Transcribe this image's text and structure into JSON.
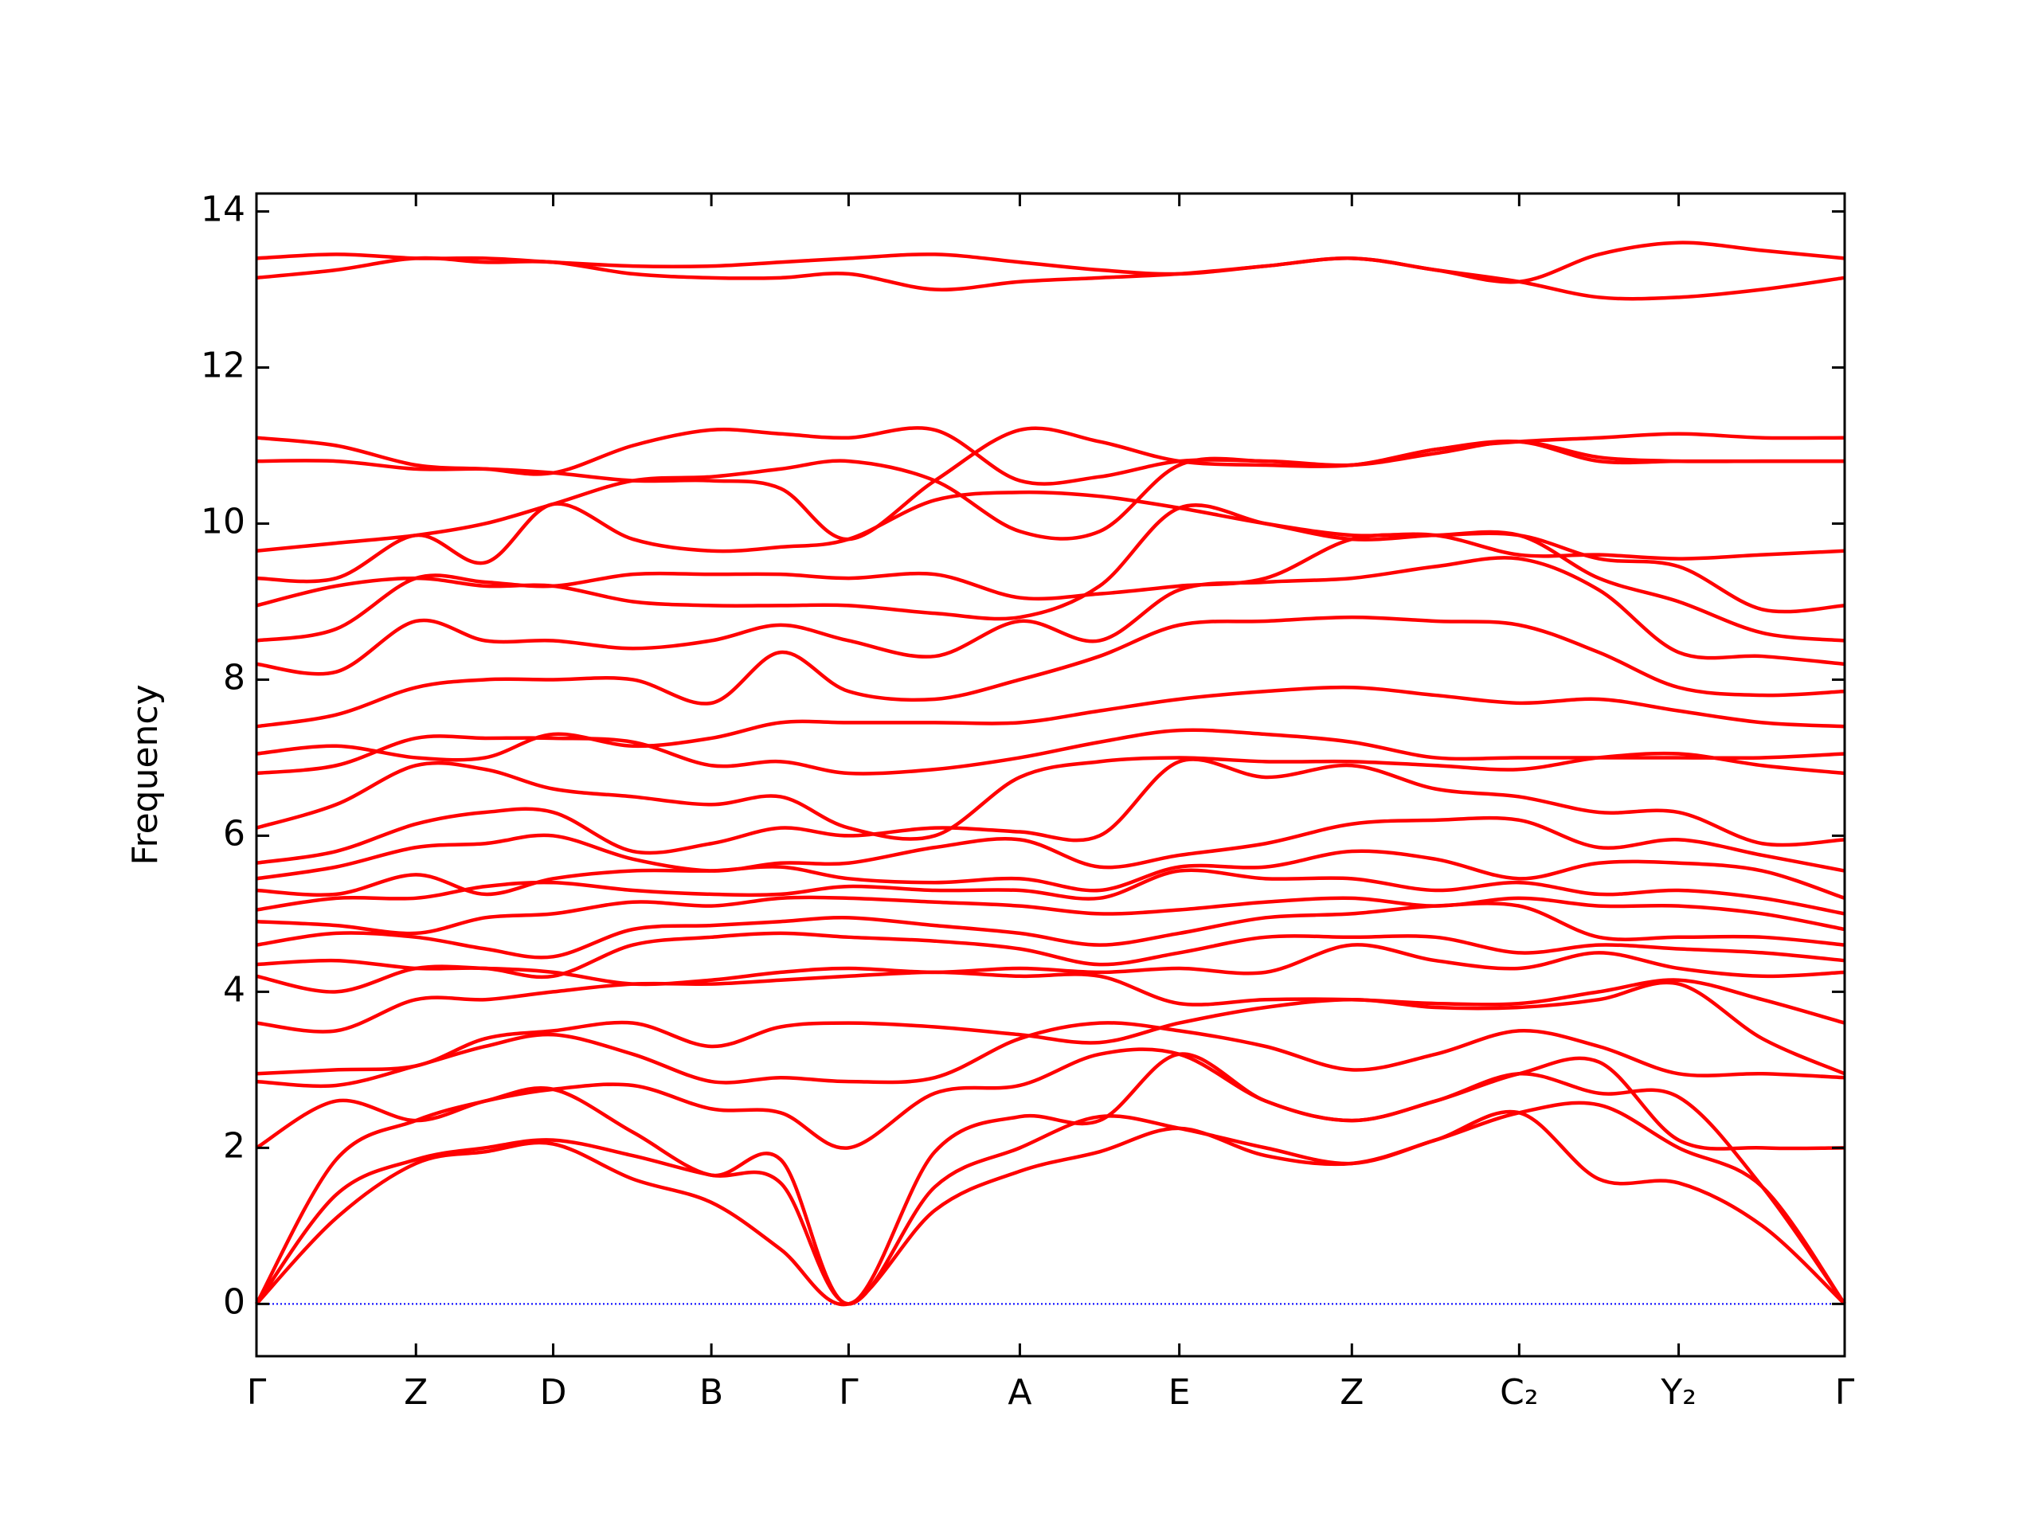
{
  "chart_data": {
    "type": "line",
    "y_label": "Frequency",
    "line_color": "#ff0000",
    "reference_line": {
      "y": 0,
      "color": "#0000ff",
      "style": "dotted"
    },
    "xlim": [
      0,
      12.15
    ],
    "ylim": [
      -0.67,
      14.23
    ],
    "xticks": [
      {
        "value": 0,
        "label": "Γ"
      },
      {
        "value": 1.22,
        "label": "Z"
      },
      {
        "value": 2.27,
        "label": "D"
      },
      {
        "value": 3.48,
        "label": "B"
      },
      {
        "value": 4.53,
        "label": "Γ"
      },
      {
        "value": 5.84,
        "label": "A"
      },
      {
        "value": 7.06,
        "label": "E"
      },
      {
        "value": 8.38,
        "label": "Z"
      },
      {
        "value": 9.66,
        "label": "C₂"
      },
      {
        "value": 10.88,
        "label": "Y₂"
      },
      {
        "value": 12.15,
        "label": "Γ"
      }
    ],
    "yticks": [
      0,
      2,
      4,
      6,
      8,
      10,
      12,
      14
    ],
    "x": [
      0,
      0.61,
      1.22,
      1.75,
      2.27,
      2.88,
      3.48,
      4.01,
      4.53,
      5.19,
      5.84,
      6.45,
      7.06,
      7.72,
      8.38,
      9.02,
      9.66,
      10.27,
      10.88,
      11.52,
      12.15
    ],
    "series": [
      {
        "values": [
          0,
          1.1,
          1.8,
          1.95,
          2.05,
          1.6,
          1.3,
          0.7,
          0,
          1.2,
          1.7,
          1.95,
          2.25,
          1.9,
          1.8,
          2.1,
          2.45,
          1.6,
          1.55,
          1.0,
          0
        ]
      },
      {
        "values": [
          0,
          1.4,
          1.85,
          2.0,
          2.1,
          1.9,
          1.65,
          1.55,
          0,
          1.5,
          2.0,
          2.4,
          2.25,
          2.0,
          1.8,
          2.1,
          2.45,
          2.55,
          2.0,
          1.5,
          0
        ]
      },
      {
        "values": [
          0,
          1.85,
          2.35,
          2.6,
          2.75,
          2.2,
          1.65,
          1.85,
          0,
          1.95,
          2.4,
          2.35,
          3.2,
          2.6,
          2.35,
          2.6,
          2.95,
          2.7,
          2.65,
          1.5,
          0
        ]
      },
      {
        "values": [
          2.0,
          2.6,
          2.35,
          2.6,
          2.75,
          2.8,
          2.5,
          2.45,
          2.0,
          2.7,
          2.8,
          3.2,
          3.2,
          2.6,
          2.35,
          2.6,
          2.95,
          3.1,
          2.1,
          2.0,
          2.0
        ]
      },
      {
        "values": [
          2.85,
          2.8,
          3.05,
          3.3,
          3.45,
          3.2,
          2.85,
          2.9,
          2.85,
          2.9,
          3.4,
          3.6,
          3.5,
          3.3,
          3.0,
          3.2,
          3.5,
          3.3,
          2.95,
          2.95,
          2.9
        ]
      },
      {
        "values": [
          2.95,
          3.0,
          3.05,
          3.4,
          3.5,
          3.6,
          3.3,
          3.55,
          3.6,
          3.55,
          3.45,
          3.35,
          3.6,
          3.8,
          3.9,
          3.8,
          3.8,
          3.9,
          4.1,
          3.4,
          2.95
        ]
      },
      {
        "values": [
          3.6,
          3.5,
          3.9,
          3.9,
          4.0,
          4.1,
          4.1,
          4.15,
          4.2,
          4.25,
          4.2,
          4.2,
          3.85,
          3.9,
          3.9,
          3.85,
          3.85,
          4.0,
          4.15,
          3.9,
          3.6
        ]
      },
      {
        "values": [
          4.2,
          4.0,
          4.3,
          4.3,
          4.25,
          4.1,
          4.15,
          4.25,
          4.3,
          4.25,
          4.3,
          4.25,
          4.3,
          4.25,
          4.6,
          4.4,
          4.3,
          4.5,
          4.3,
          4.2,
          4.25
        ]
      },
      {
        "values": [
          4.35,
          4.4,
          4.3,
          4.3,
          4.2,
          4.6,
          4.7,
          4.75,
          4.7,
          4.65,
          4.55,
          4.35,
          4.5,
          4.7,
          4.7,
          4.7,
          4.5,
          4.6,
          4.55,
          4.5,
          4.4
        ]
      },
      {
        "values": [
          4.6,
          4.75,
          4.7,
          4.55,
          4.45,
          4.8,
          4.85,
          4.9,
          4.95,
          4.85,
          4.75,
          4.6,
          4.75,
          4.95,
          5.0,
          5.1,
          5.1,
          4.7,
          4.7,
          4.7,
          4.6
        ]
      },
      {
        "values": [
          4.9,
          4.85,
          4.75,
          4.95,
          5.0,
          5.15,
          5.1,
          5.2,
          5.2,
          5.15,
          5.1,
          5.0,
          5.05,
          5.15,
          5.2,
          5.1,
          5.2,
          5.1,
          5.1,
          5.0,
          4.8
        ]
      },
      {
        "values": [
          5.05,
          5.2,
          5.2,
          5.35,
          5.4,
          5.3,
          5.25,
          5.25,
          5.35,
          5.3,
          5.3,
          5.2,
          5.55,
          5.45,
          5.45,
          5.3,
          5.4,
          5.25,
          5.3,
          5.2,
          5.0
        ]
      },
      {
        "values": [
          5.3,
          5.25,
          5.5,
          5.25,
          5.45,
          5.55,
          5.55,
          5.6,
          5.45,
          5.4,
          5.45,
          5.3,
          5.6,
          5.6,
          5.8,
          5.7,
          5.45,
          5.65,
          5.65,
          5.55,
          5.2
        ]
      },
      {
        "values": [
          5.45,
          5.6,
          5.85,
          5.9,
          6.0,
          5.7,
          5.55,
          5.65,
          5.65,
          5.85,
          5.95,
          5.6,
          5.75,
          5.9,
          6.15,
          6.2,
          6.2,
          5.85,
          5.95,
          5.75,
          5.55
        ]
      },
      {
        "values": [
          5.65,
          5.8,
          6.15,
          6.3,
          6.3,
          5.8,
          5.9,
          6.1,
          6.0,
          6.1,
          6.05,
          6.0,
          6.95,
          6.75,
          6.9,
          6.6,
          6.5,
          6.3,
          6.3,
          5.9,
          5.95
        ]
      },
      {
        "values": [
          6.1,
          6.4,
          6.9,
          6.85,
          6.6,
          6.5,
          6.4,
          6.5,
          6.1,
          6.0,
          6.75,
          6.95,
          7.0,
          6.95,
          6.95,
          6.9,
          6.85,
          7.0,
          7.05,
          6.9,
          6.8
        ]
      },
      {
        "values": [
          6.8,
          6.9,
          7.25,
          7.25,
          7.25,
          7.2,
          6.9,
          6.95,
          6.8,
          6.85,
          7.0,
          7.2,
          7.35,
          7.3,
          7.2,
          7.0,
          7.0,
          7.0,
          7.0,
          7.0,
          7.05
        ]
      },
      {
        "values": [
          7.05,
          7.15,
          7.0,
          7.0,
          7.3,
          7.15,
          7.25,
          7.45,
          7.45,
          7.45,
          7.45,
          7.6,
          7.75,
          7.85,
          7.9,
          7.8,
          7.7,
          7.75,
          7.6,
          7.45,
          7.4
        ]
      },
      {
        "values": [
          7.4,
          7.55,
          7.9,
          8.0,
          8.0,
          8.0,
          7.7,
          8.35,
          7.85,
          7.75,
          8.0,
          8.3,
          8.7,
          8.75,
          8.8,
          8.75,
          8.7,
          8.35,
          7.9,
          7.8,
          7.85
        ]
      },
      {
        "values": [
          8.2,
          8.1,
          8.75,
          8.5,
          8.5,
          8.4,
          8.5,
          8.7,
          8.5,
          8.3,
          8.75,
          8.5,
          9.15,
          9.25,
          9.3,
          9.45,
          9.55,
          9.15,
          8.35,
          8.3,
          8.2
        ]
      },
      {
        "values": [
          8.5,
          8.65,
          9.3,
          9.25,
          9.2,
          9.35,
          9.35,
          9.35,
          9.3,
          9.35,
          9.05,
          9.1,
          9.2,
          9.3,
          9.8,
          9.85,
          9.85,
          9.3,
          9.0,
          8.6,
          8.5
        ]
      },
      {
        "values": [
          8.95,
          9.2,
          9.3,
          9.2,
          9.2,
          9.0,
          8.95,
          8.95,
          8.95,
          8.85,
          8.8,
          9.2,
          10.2,
          10.0,
          9.8,
          9.85,
          9.85,
          9.55,
          9.45,
          8.9,
          8.95
        ]
      },
      {
        "values": [
          9.3,
          9.3,
          9.85,
          9.5,
          10.25,
          9.8,
          9.65,
          9.7,
          9.8,
          10.3,
          10.4,
          10.35,
          10.2,
          10.0,
          9.85,
          9.85,
          9.6,
          9.6,
          9.55,
          9.6,
          9.65
        ]
      },
      {
        "values": [
          9.65,
          9.75,
          9.85,
          10.0,
          10.25,
          10.55,
          10.6,
          10.7,
          10.8,
          10.55,
          9.9,
          9.9,
          10.75,
          10.8,
          10.75,
          10.9,
          11.05,
          10.85,
          10.8,
          10.8,
          10.8
        ]
      },
      {
        "values": [
          10.8,
          10.8,
          10.7,
          10.7,
          10.65,
          10.55,
          10.55,
          10.45,
          9.8,
          10.55,
          11.2,
          11.05,
          10.8,
          10.75,
          10.75,
          10.95,
          11.05,
          11.1,
          11.15,
          11.1,
          11.1
        ]
      },
      {
        "values": [
          11.1,
          11.0,
          10.75,
          10.7,
          10.65,
          11.0,
          11.2,
          11.15,
          11.1,
          11.2,
          10.55,
          10.6,
          10.8,
          10.8,
          10.75,
          10.95,
          11.05,
          10.8,
          10.8,
          10.8,
          10.8
        ]
      },
      {
        "values": [
          13.15,
          13.25,
          13.4,
          13.35,
          13.35,
          13.2,
          13.15,
          13.15,
          13.2,
          13.0,
          13.1,
          13.15,
          13.2,
          13.3,
          13.4,
          13.25,
          13.1,
          12.9,
          12.9,
          13.0,
          13.15
        ]
      },
      {
        "values": [
          13.4,
          13.45,
          13.4,
          13.4,
          13.35,
          13.3,
          13.3,
          13.35,
          13.4,
          13.45,
          13.35,
          13.25,
          13.2,
          13.3,
          13.4,
          13.25,
          13.1,
          13.45,
          13.6,
          13.5,
          13.4
        ]
      }
    ]
  }
}
